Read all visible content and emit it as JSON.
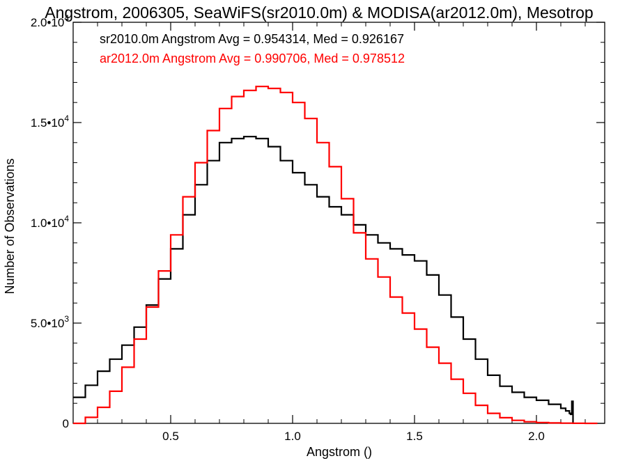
{
  "chart_data": {
    "type": "line",
    "title": "Angstrom, 2006305, SeaWiFS(sr2010.0m) & MODISA(ar2012.0m), Mesotrop",
    "xlabel": "Angstrom ()",
    "ylabel": "Number of Observations",
    "xlim": [
      0.1,
      2.28
    ],
    "ylim": [
      0,
      20000
    ],
    "x_ticks": [
      {
        "value": 0.5,
        "label": "0.5"
      },
      {
        "value": 1.0,
        "label": "1.0"
      },
      {
        "value": 1.5,
        "label": "1.5"
      },
      {
        "value": 2.0,
        "label": "2.0"
      }
    ],
    "y_ticks": [
      {
        "value": 0,
        "mantissa": "0",
        "exp": ""
      },
      {
        "value": 5000,
        "mantissa": "5.0•10",
        "exp": "3"
      },
      {
        "value": 10000,
        "mantissa": "1.0•10",
        "exp": "4"
      },
      {
        "value": 15000,
        "mantissa": "1.5•10",
        "exp": "4"
      },
      {
        "value": 20000,
        "mantissa": "2.0•10",
        "exp": "4"
      }
    ],
    "step": true,
    "grid": false,
    "series": [
      {
        "name": "sr2010.0m",
        "color": "#000000",
        "stats_text": "sr2010.0m Angstrom Avg = 0.954314, Med = 0.926167",
        "x": [
          0.1,
          0.15,
          0.2,
          0.25,
          0.3,
          0.35,
          0.4,
          0.45,
          0.5,
          0.55,
          0.6,
          0.65,
          0.7,
          0.75,
          0.8,
          0.85,
          0.9,
          0.95,
          1.0,
          1.05,
          1.1,
          1.15,
          1.2,
          1.25,
          1.3,
          1.35,
          1.4,
          1.45,
          1.5,
          1.55,
          1.6,
          1.65,
          1.7,
          1.75,
          1.8,
          1.85,
          1.9,
          1.95,
          2.0,
          2.05,
          2.1,
          2.12,
          2.135,
          2.14,
          2.145,
          2.15
        ],
        "y": [
          1300,
          1900,
          2600,
          3200,
          3900,
          4800,
          5900,
          7200,
          8700,
          10400,
          11900,
          13100,
          14000,
          14200,
          14300,
          14200,
          13800,
          13100,
          12500,
          11900,
          11300,
          10800,
          10400,
          9900,
          9400,
          9000,
          8700,
          8400,
          8100,
          7400,
          6400,
          5300,
          4200,
          3200,
          2400,
          1850,
          1550,
          1300,
          1150,
          950,
          750,
          620,
          500,
          450,
          1100,
          0
        ]
      },
      {
        "name": "ar2012.0m",
        "color": "#ff0000",
        "stats_text": "ar2012.0m Angstrom Avg = 0.990706, Med = 0.978512",
        "x": [
          0.1,
          0.15,
          0.2,
          0.25,
          0.3,
          0.35,
          0.4,
          0.45,
          0.5,
          0.55,
          0.6,
          0.65,
          0.7,
          0.75,
          0.8,
          0.85,
          0.9,
          0.95,
          1.0,
          1.05,
          1.1,
          1.15,
          1.2,
          1.25,
          1.3,
          1.35,
          1.4,
          1.45,
          1.5,
          1.55,
          1.6,
          1.65,
          1.7,
          1.75,
          1.8,
          1.85,
          1.9,
          1.95,
          2.0,
          2.05,
          2.1,
          2.15,
          2.2,
          2.25
        ],
        "y": [
          0,
          300,
          800,
          1600,
          2800,
          4200,
          5800,
          7600,
          9400,
          11300,
          13000,
          14600,
          15700,
          16300,
          16600,
          16800,
          16700,
          16500,
          16000,
          15200,
          14000,
          12800,
          11200,
          9500,
          8200,
          7300,
          6300,
          5500,
          4700,
          3800,
          3000,
          2200,
          1500,
          900,
          500,
          280,
          150,
          80,
          40,
          20,
          10,
          5,
          0,
          0
        ]
      }
    ]
  }
}
